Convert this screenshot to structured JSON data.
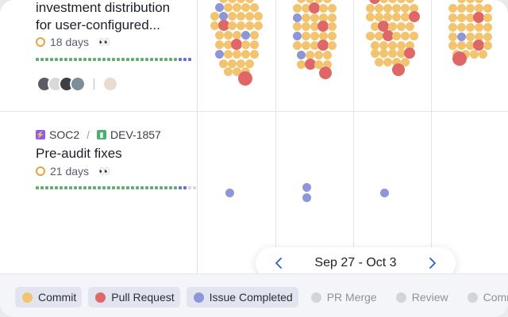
{
  "rows": [
    {
      "title_lines": [
        "investment distribution",
        "for user-configured..."
      ],
      "age": "18 days",
      "reaction": "👀",
      "progress": {
        "done": 30,
        "active": 3,
        "total": 33
      }
    },
    {
      "tags": [
        {
          "label": "SOC2",
          "icon": "bolt-icon",
          "color": "#8b5cf6"
        },
        {
          "label": "DEV-1857",
          "icon": "bookmark-icon",
          "color": "#4caf72"
        }
      ],
      "title": "Pre-audit fixes",
      "age": "21 days",
      "reaction": "👀",
      "progress": {
        "done": 30,
        "active": 2,
        "remaining": 2,
        "total": 34
      }
    }
  ],
  "date_nav": {
    "range": "Sep 27 - Oct 3"
  },
  "legend": [
    {
      "label": "Commit",
      "color": "#f2c46f",
      "active": true
    },
    {
      "label": "Pull Request",
      "color": "#e06767",
      "active": true
    },
    {
      "label": "Issue Completed",
      "color": "#8d96d9",
      "active": true
    },
    {
      "label": "PR Merge",
      "color": "#d2d4d9",
      "active": false
    },
    {
      "label": "Review",
      "color": "#d2d4d9",
      "active": false
    },
    {
      "label": "Comme",
      "color": "#d2d4d9",
      "active": false
    }
  ],
  "colors": {
    "commit": "#f2c46f",
    "pull_request": "#e06767",
    "issue": "#8d96d9",
    "progress_done": "#5fae6e",
    "progress_active": "#6c6fd9",
    "progress_remaining": "#d5d8de"
  }
}
